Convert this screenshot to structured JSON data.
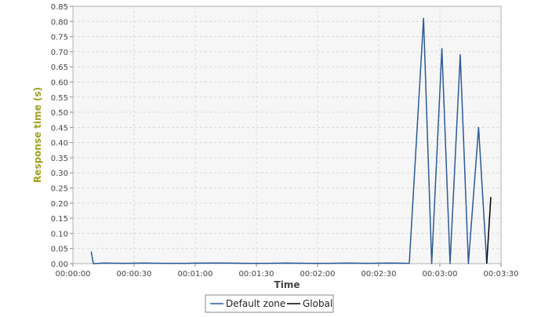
{
  "colors": {
    "plot_bg": "#f6f6f6",
    "grid": "#d9d9d9",
    "axis": "#888888",
    "ylabel": "#a0a020",
    "xlabel": "#444444",
    "default_zone": "#2a5a98",
    "global": "#000000"
  },
  "chart_data": {
    "type": "line",
    "xlabel": "Time",
    "ylabel": "Response time (s)",
    "xlim": [
      0,
      210
    ],
    "ylim": [
      0,
      0.85
    ],
    "x_ticks": [
      {
        "value": 0,
        "label": "00:00:00"
      },
      {
        "value": 30,
        "label": "00:00:30"
      },
      {
        "value": 60,
        "label": "00:01:00"
      },
      {
        "value": 90,
        "label": "00:01:30"
      },
      {
        "value": 120,
        "label": "00:02:00"
      },
      {
        "value": 150,
        "label": "00:02:30"
      },
      {
        "value": 180,
        "label": "00:03:00"
      },
      {
        "value": 210,
        "label": "00:03:30"
      }
    ],
    "y_ticks": [
      {
        "value": 0,
        "label": "0.00"
      },
      {
        "value": 0.05,
        "label": "0.05"
      },
      {
        "value": 0.1,
        "label": "0.10"
      },
      {
        "value": 0.15,
        "label": "0.15"
      },
      {
        "value": 0.2,
        "label": "0.20"
      },
      {
        "value": 0.25,
        "label": "0.25"
      },
      {
        "value": 0.3,
        "label": "0.30"
      },
      {
        "value": 0.35,
        "label": "0.35"
      },
      {
        "value": 0.4,
        "label": "0.40"
      },
      {
        "value": 0.45,
        "label": "0.45"
      },
      {
        "value": 0.5,
        "label": "0.50"
      },
      {
        "value": 0.55,
        "label": "0.55"
      },
      {
        "value": 0.6,
        "label": "0.60"
      },
      {
        "value": 0.65,
        "label": "0.65"
      },
      {
        "value": 0.7,
        "label": "0.70"
      },
      {
        "value": 0.75,
        "label": "0.75"
      },
      {
        "value": 0.8,
        "label": "0.80"
      },
      {
        "value": 0.85,
        "label": "0.85"
      }
    ],
    "grid": true,
    "legend_position": "bottom-center",
    "series": [
      {
        "name": "Default zone",
        "color": "#2a5a98",
        "x": [
          9,
          10,
          15,
          25,
          35,
          45,
          55,
          65,
          75,
          85,
          95,
          105,
          115,
          125,
          135,
          145,
          155,
          165,
          172,
          176,
          181,
          185,
          190,
          194,
          199,
          203
        ],
        "y": [
          0.04,
          0.0,
          0.002,
          0.001,
          0.002,
          0.001,
          0.001,
          0.002,
          0.002,
          0.001,
          0.001,
          0.002,
          0.001,
          0.001,
          0.002,
          0.001,
          0.002,
          0.001,
          0.81,
          0.0,
          0.71,
          0.0,
          0.69,
          0.0,
          0.45,
          0.0
        ]
      },
      {
        "name": "Global",
        "color": "#000000",
        "x": [
          203,
          205
        ],
        "y": [
          0.0,
          0.22
        ]
      }
    ]
  }
}
